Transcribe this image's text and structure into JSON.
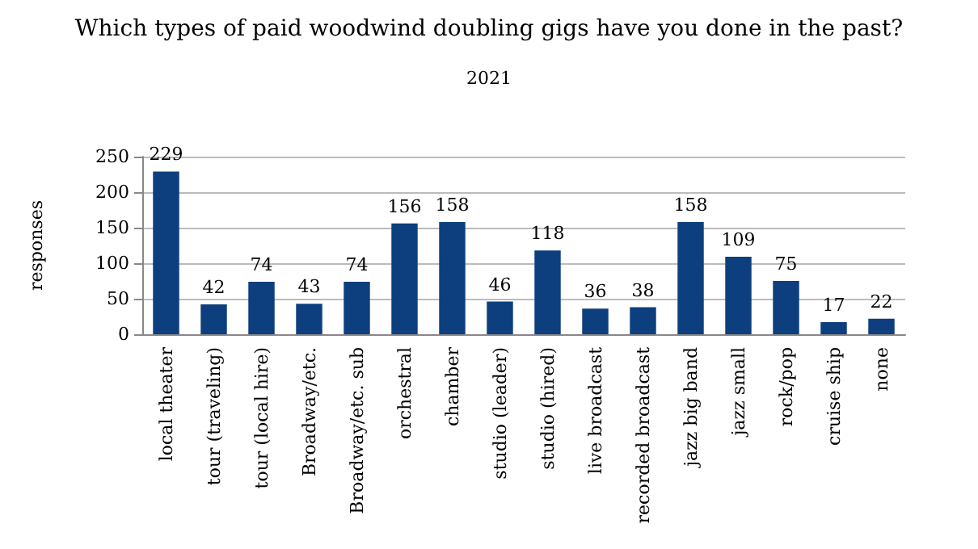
{
  "chart_data": {
    "type": "bar",
    "title": "Which types of paid woodwind doubling gigs have you done in the past?",
    "subtitle": "2021",
    "ylabel": "responses",
    "categories": [
      "local theater",
      "tour (traveling)",
      "tour (local hire)",
      "Broadway/etc.",
      "Broadway/etc. sub",
      "orchestral",
      "chamber",
      "studio (leader)",
      "studio (hired)",
      "live broadcast",
      "recorded broadcast",
      "jazz big band",
      "jazz small",
      "rock/pop",
      "cruise ship",
      "none"
    ],
    "values": [
      229,
      42,
      74,
      43,
      74,
      156,
      158,
      46,
      118,
      36,
      38,
      158,
      109,
      75,
      17,
      22
    ],
    "color": "#0d3f7e",
    "ylim": [
      0,
      250
    ],
    "yticks": [
      0,
      50,
      100,
      150,
      200,
      250
    ],
    "grid": "y",
    "data_labels": true
  }
}
